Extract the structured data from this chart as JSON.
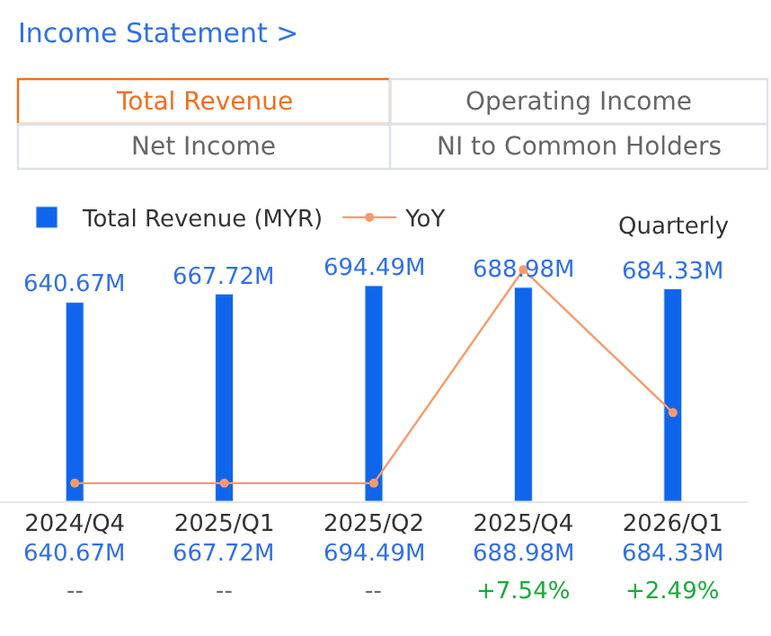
{
  "chart_data": {
    "type": "bar",
    "title": "Income Statement >",
    "annotations": [
      "Total Revenue",
      "Operating Income",
      "Net Income",
      "NI to Common Holders",
      "Quarterly"
    ],
    "categories": [
      "2024/Q4",
      "2025/Q1",
      "2025/Q2",
      "2025/Q4",
      "2026/Q1"
    ],
    "series": [
      {
        "name": "Total Revenue (MYR)",
        "color": "#0f66ec",
        "values": [
          640.67,
          667.72,
          694.49,
          688.98,
          684.33
        ],
        "value_labels": [
          "640.67M",
          "667.72M",
          "694.49M",
          "688.98M",
          "684.33M"
        ]
      },
      {
        "name": "YoY",
        "type": "line",
        "axis": "y2",
        "color": "#f89a6c",
        "values": [
          0,
          0,
          0,
          7.54,
          2.49
        ],
        "value_labels": [
          "--",
          "--",
          "--",
          "+7.54%",
          "+2.49%"
        ]
      }
    ],
    "tick_labels": "x",
    "legend": "top left",
    "marker": "circle",
    "line_style": "solid"
  }
}
